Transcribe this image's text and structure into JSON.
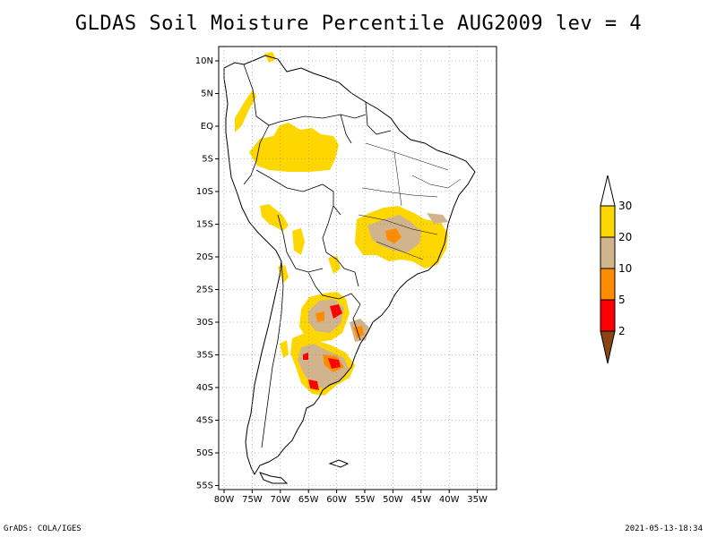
{
  "title": "GLDAS Soil Moisture Percentile AUG2009 lev = 4",
  "footer": {
    "left": "GrADS: COLA/IGES",
    "right": "2021-05-13-18:34"
  },
  "map": {
    "lat_labels": [
      "10N",
      "5N",
      "EQ",
      "5S",
      "10S",
      "15S",
      "20S",
      "25S",
      "30S",
      "35S",
      "40S",
      "45S",
      "50S",
      "55S"
    ],
    "lon_labels": [
      "80W",
      "75W",
      "70W",
      "65W",
      "60W",
      "55W",
      "50W",
      "45W",
      "40W",
      "35W"
    ]
  },
  "legend": {
    "levels": [
      "30",
      "20",
      "10",
      "5",
      "2"
    ],
    "colors": {
      "above_30": "#ffffff",
      "20_30": "#ffd700",
      "10_20": "#d2b48c",
      "5_10": "#ff8c00",
      "2_5": "#ff0000",
      "below_2": "#8b4513"
    }
  },
  "colors": {
    "gridline": "#888888",
    "coast": "#000000"
  }
}
